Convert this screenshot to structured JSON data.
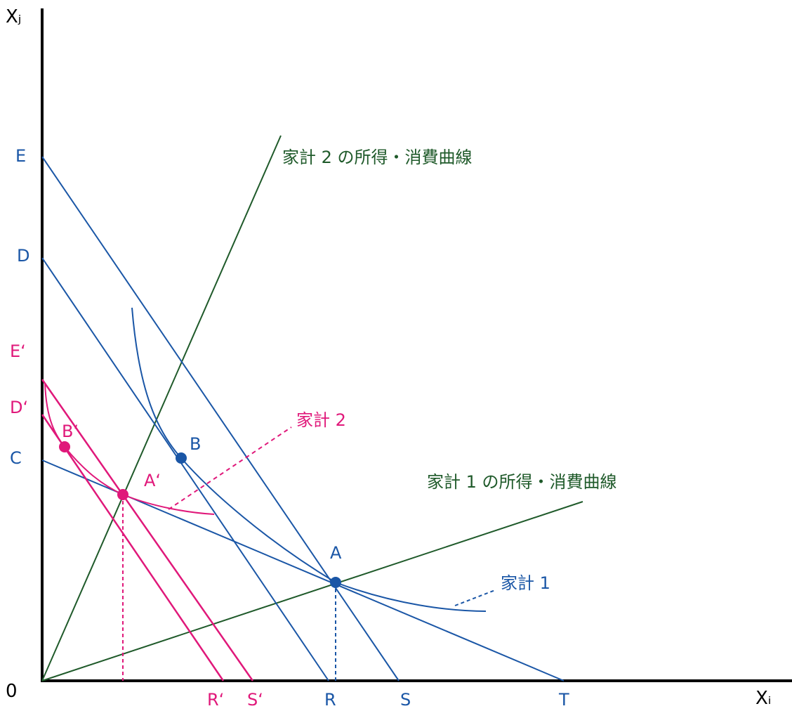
{
  "axes": {
    "y_label": "Xⱼ",
    "x_label": "Xᵢ",
    "origin_label": "0"
  },
  "labels": {
    "E": "E",
    "D": "D",
    "C": "C",
    "E_prime": "E‘",
    "D_prime": "D‘",
    "R": "R",
    "S": "S",
    "T": "T",
    "R_prime": "R‘",
    "S_prime": "S‘",
    "A": "A",
    "B": "B",
    "A_prime": "A‘",
    "B_prime": "B‘"
  },
  "annotations": {
    "household2_icc": "家計 2 の所得・消費曲線",
    "household1_icc": "家計 1 の所得・消費曲線",
    "household2": "家計 2",
    "household1": "家計 1"
  },
  "colors": {
    "axis": "#000000",
    "household1": "#1a56a6",
    "household2": "#e0187a",
    "income_consumption_curve": "#1f5a2a"
  }
}
